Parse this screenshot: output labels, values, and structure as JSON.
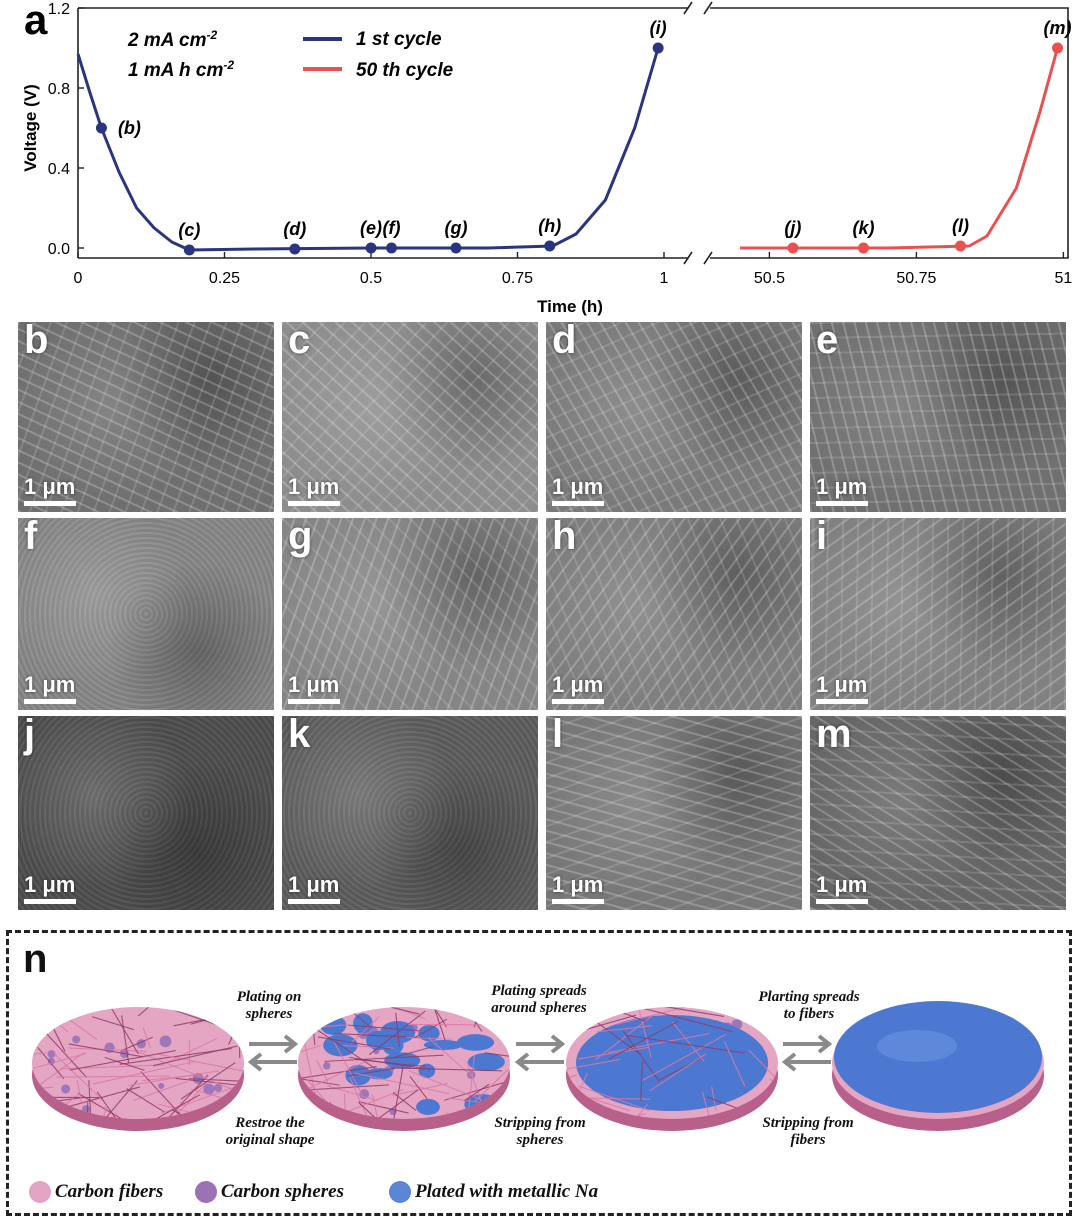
{
  "chart_data": {
    "type": "line",
    "panel_label": "a",
    "conditions": [
      "2 mA cm",
      "1 mA h cm"
    ],
    "condition_superscripts": [
      "-2",
      "-2"
    ],
    "xlabel": "Time (h)",
    "ylabel": "Voltage (V)",
    "ylim": [
      -0.05,
      1.2
    ],
    "yticks": [
      "0.0",
      "0.4",
      "0.8",
      "1.2"
    ],
    "yticks_values": [
      0.0,
      0.4,
      0.8,
      1.2
    ],
    "xtick_labels_left": [
      "0",
      "0.25",
      "0.5",
      "0.75",
      "1"
    ],
    "xtick_values_left": [
      0,
      0.25,
      0.5,
      0.75,
      1.0
    ],
    "xtick_labels_right": [
      "50.5",
      "50.75",
      "51"
    ],
    "xtick_values_right": [
      50.5,
      50.75,
      51.0
    ],
    "x_break": [
      1.0,
      50.5
    ],
    "series": [
      {
        "name": "1 st cycle",
        "color": "#2a3580",
        "x": [
          0.0,
          0.02,
          0.04,
          0.07,
          0.1,
          0.13,
          0.16,
          0.19,
          0.3,
          0.5,
          0.7,
          0.81,
          0.85,
          0.9,
          0.95,
          0.99
        ],
        "y": [
          0.97,
          0.78,
          0.6,
          0.38,
          0.2,
          0.1,
          0.03,
          -0.01,
          -0.005,
          0.0,
          0.0,
          0.01,
          0.07,
          0.24,
          0.6,
          1.0
        ],
        "markers": [
          {
            "label": "(b)",
            "x": 0.04,
            "y": 0.6
          },
          {
            "label": "(c)",
            "x": 0.19,
            "y": -0.01
          },
          {
            "label": "(d)",
            "x": 0.37,
            "y": -0.005
          },
          {
            "label": "(e)",
            "x": 0.5,
            "y": 0.0
          },
          {
            "label": "(f)",
            "x": 0.535,
            "y": 0.0
          },
          {
            "label": "(g)",
            "x": 0.645,
            "y": 0.0
          },
          {
            "label": "(h)",
            "x": 0.805,
            "y": 0.01
          },
          {
            "label": "(i)",
            "x": 0.99,
            "y": 1.0
          }
        ]
      },
      {
        "name": "50 th cycle",
        "color": "#e8514f",
        "x": [
          50.45,
          50.6,
          50.7,
          50.84,
          50.87,
          50.92,
          50.96,
          50.99
        ],
        "y": [
          0.0,
          0.0,
          0.0,
          0.01,
          0.06,
          0.3,
          0.68,
          1.0
        ],
        "markers": [
          {
            "label": "(j)",
            "x": 50.54,
            "y": 0.0
          },
          {
            "label": "(k)",
            "x": 50.66,
            "y": 0.0
          },
          {
            "label": "(l)",
            "x": 50.825,
            "y": 0.01
          },
          {
            "label": "(m)",
            "x": 50.99,
            "y": 1.0
          }
        ]
      }
    ]
  },
  "sem_panels": [
    {
      "letter": "b",
      "scale_bar": "1 μm",
      "tone": "#6f6f6f"
    },
    {
      "letter": "c",
      "scale_bar": "1 μm",
      "tone": "#8d8d8d"
    },
    {
      "letter": "d",
      "scale_bar": "1 μm",
      "tone": "#7a7a7a"
    },
    {
      "letter": "e",
      "scale_bar": "1 μm",
      "tone": "#707070"
    },
    {
      "letter": "f",
      "scale_bar": "1 μm",
      "tone": "#888888"
    },
    {
      "letter": "g",
      "scale_bar": "1 μm",
      "tone": "#858585"
    },
    {
      "letter": "h",
      "scale_bar": "1 μm",
      "tone": "#7e7e7e"
    },
    {
      "letter": "i",
      "scale_bar": "1 μm",
      "tone": "#818181"
    },
    {
      "letter": "j",
      "scale_bar": "1 μm",
      "tone": "#4e4e4e"
    },
    {
      "letter": "k",
      "scale_bar": "1 μm",
      "tone": "#5e5e5e"
    },
    {
      "letter": "l",
      "scale_bar": "1 μm",
      "tone": "#777777"
    },
    {
      "letter": "m",
      "scale_bar": "1 μm",
      "tone": "#666666"
    }
  ],
  "schematic": {
    "letter": "n",
    "annotations": {
      "plating_on_spheres": [
        "Plating on",
        "spheres"
      ],
      "restore_shape": [
        "Restroe the",
        "original shape"
      ],
      "plating_spreads_spheres": [
        "Plating spreads",
        "around spheres"
      ],
      "stripping_spheres": [
        "Stripping from",
        "spheres"
      ],
      "plating_spreads_fibers": [
        "Plarting spreads",
        "to fibers"
      ],
      "stripping_fibers": [
        "Stripping from",
        "fibers"
      ]
    },
    "legend": [
      {
        "label": "Carbon fibers",
        "color": "#e3a3c3"
      },
      {
        "label": "Carbon spheres",
        "color": "#9b72b5"
      },
      {
        "label": "Plated with metallic Na",
        "color": "#5a86d4"
      }
    ],
    "colors": {
      "fiber": "#d97aa7",
      "sphere": "#8f6ab8",
      "sodium": "#4d78d1",
      "arrow": "#8a8a8a"
    }
  }
}
